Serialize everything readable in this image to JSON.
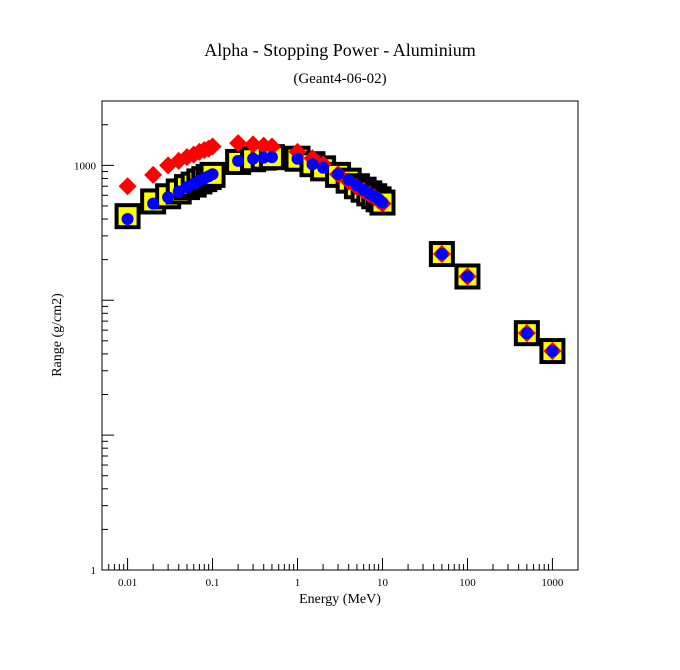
{
  "chart_data": {
    "type": "scatter",
    "title": "Alpha - Stopping Power - Aluminium",
    "subtitle": "(Geant4-06-02)",
    "xlabel": "Energy (MeV)",
    "ylabel": "Range (g/cm2)",
    "xscale": "log",
    "yscale": "log",
    "xlim": [
      0.005,
      2000
    ],
    "ylim": [
      1,
      3000
    ],
    "xticks": [
      "0.01",
      "0.1",
      "1",
      "10",
      "100",
      "1000"
    ],
    "xtick_values": [
      0.01,
      0.1,
      1,
      10,
      100,
      1000
    ],
    "yticks": [
      "1",
      "1000"
    ],
    "ytick_values": [
      1,
      1000
    ],
    "grid": false,
    "series": [
      {
        "marker": "square",
        "color": "#ffff00",
        "edgecolor": "#000000",
        "x": [
          0.01,
          0.02,
          0.03,
          0.04,
          0.05,
          0.06,
          0.07,
          0.08,
          0.09,
          0.1,
          0.2,
          0.3,
          0.4,
          0.5,
          1.0,
          1.5,
          2.0,
          3.0,
          4.0,
          5.0,
          6.0,
          7.0,
          8.0,
          9.0,
          10.0,
          50.0,
          100.0,
          500.0,
          1000.0
        ],
        "y": [
          420,
          540,
          590,
          640,
          690,
          720,
          760,
          790,
          820,
          850,
          1060,
          1110,
          1140,
          1150,
          1120,
          1020,
          950,
          850,
          770,
          700,
          660,
          620,
          590,
          560,
          530,
          220,
          150,
          57,
          42
        ]
      },
      {
        "marker": "diamond",
        "color": "#ff0000",
        "x": [
          0.01,
          0.02,
          0.03,
          0.04,
          0.05,
          0.06,
          0.07,
          0.08,
          0.09,
          0.1,
          0.2,
          0.3,
          0.4,
          0.5,
          1.0,
          1.5,
          2.0,
          3.0,
          4.0,
          5.0,
          6.0,
          7.0,
          8.0,
          9.0,
          10.0,
          50.0,
          100.0,
          500.0,
          1000.0
        ],
        "y": [
          700,
          850,
          1000,
          1080,
          1150,
          1200,
          1260,
          1300,
          1330,
          1380,
          1460,
          1430,
          1400,
          1380,
          1260,
          1130,
          1020,
          860,
          760,
          690,
          650,
          610,
          580,
          550,
          520,
          220,
          150,
          57,
          42
        ]
      },
      {
        "marker": "circle",
        "color": "#0000ff",
        "x": [
          0.01,
          0.02,
          0.03,
          0.04,
          0.05,
          0.06,
          0.07,
          0.08,
          0.09,
          0.1,
          0.2,
          0.3,
          0.4,
          0.5,
          1.0,
          1.5,
          2.0,
          3.0,
          4.0,
          5.0,
          6.0,
          7.0,
          8.0,
          9.0,
          10.0,
          50.0,
          100.0,
          500.0,
          1000.0
        ],
        "y": [
          400,
          520,
          580,
          640,
          690,
          730,
          770,
          800,
          830,
          860,
          1080,
          1120,
          1140,
          1150,
          1120,
          1020,
          960,
          860,
          780,
          710,
          660,
          620,
          590,
          560,
          530,
          220,
          150,
          57,
          42
        ]
      }
    ]
  }
}
